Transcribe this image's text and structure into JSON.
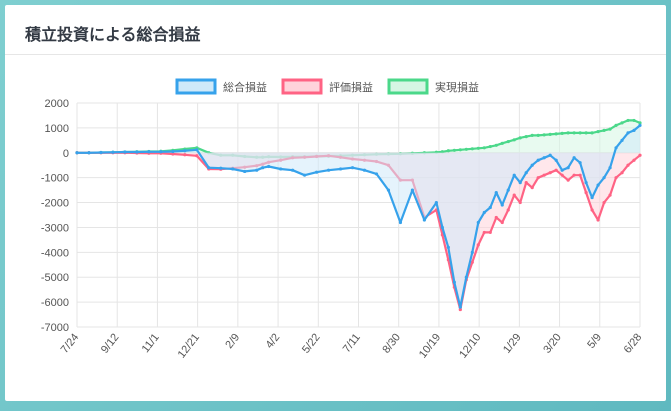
{
  "card": {
    "title": "積立投資による総合損益"
  },
  "colors": {
    "total_line": "#36a2eb",
    "total_fill": "#cfe9f9",
    "eval_line": "#ff6384",
    "eval_fill": "#ffd3db",
    "realized_line": "#4bd88a",
    "realized_fill": "#d6f6e4",
    "grid": "#e5e5e5",
    "axis_text": "#555555"
  },
  "chart_data": {
    "type": "area",
    "title": "",
    "xlabel": "",
    "ylabel": "",
    "ylim": [
      -7000,
      2000
    ],
    "yticks": [
      2000,
      1000,
      0,
      -1000,
      -2000,
      -3000,
      -4000,
      -5000,
      -6000,
      -7000
    ],
    "x_tick_labels": [
      "7/24",
      "9/12",
      "11/1",
      "12/21",
      "2/9",
      "4/2",
      "5/22",
      "7/11",
      "8/30",
      "10/19",
      "12/10",
      "1/29",
      "3/20",
      "5/9",
      "6/28"
    ],
    "grid": true,
    "legend_position": "top",
    "x": [
      0,
      2,
      4,
      6,
      8,
      10,
      12,
      14,
      16,
      18,
      20,
      22,
      24,
      26,
      28,
      30,
      31,
      32,
      34,
      36,
      38,
      40,
      42,
      44,
      46,
      48,
      50,
      52,
      54,
      56,
      58,
      60,
      61,
      62,
      63,
      64,
      65,
      66,
      67,
      68,
      69,
      70,
      71,
      72,
      73,
      74,
      75,
      76,
      77,
      78,
      79,
      80,
      81,
      82,
      83,
      84,
      85,
      86,
      87,
      88,
      89,
      90,
      91,
      92,
      93,
      94
    ],
    "series": [
      {
        "name": "総合損益",
        "values": [
          0,
          0,
          10,
          20,
          30,
          30,
          40,
          40,
          50,
          80,
          120,
          -600,
          -620,
          -650,
          -750,
          -700,
          -600,
          -550,
          -650,
          -700,
          -900,
          -780,
          -700,
          -650,
          -600,
          -700,
          -850,
          -1500,
          -2800,
          -1500,
          -2700,
          -2000,
          -3000,
          -3800,
          -5200,
          -6200,
          -5000,
          -4000,
          -2800,
          -2400,
          -2200,
          -1600,
          -2100,
          -1500,
          -900,
          -1200,
          -800,
          -500,
          -300,
          -200,
          -100,
          -300,
          -700,
          -600,
          -200,
          -400,
          -1200,
          -1800,
          -1300,
          -1000,
          -600,
          200,
          500,
          800,
          900,
          1100
        ]
      },
      {
        "name": "評価損益",
        "values": [
          0,
          0,
          0,
          0,
          0,
          -10,
          -20,
          -20,
          -50,
          -80,
          -120,
          -650,
          -660,
          -620,
          -580,
          -520,
          -460,
          -380,
          -300,
          -200,
          -180,
          -150,
          -120,
          -180,
          -250,
          -300,
          -350,
          -500,
          -1100,
          -1100,
          -2600,
          -2300,
          -3300,
          -4300,
          -5400,
          -6300,
          -5100,
          -4400,
          -3700,
          -3200,
          -3200,
          -2600,
          -2800,
          -2300,
          -1700,
          -2000,
          -1200,
          -1400,
          -1000,
          -900,
          -800,
          -700,
          -900,
          -1100,
          -900,
          -900,
          -1600,
          -2300,
          -2700,
          -2000,
          -1700,
          -1000,
          -800,
          -500,
          -300,
          -100
        ]
      },
      {
        "name": "実現損益",
        "values": [
          0,
          0,
          10,
          20,
          30,
          40,
          50,
          60,
          100,
          150,
          200,
          0,
          -100,
          -100,
          -150,
          -180,
          -180,
          -160,
          -170,
          -160,
          -160,
          -140,
          -130,
          -120,
          -100,
          -80,
          -60,
          -50,
          -40,
          -20,
          0,
          20,
          40,
          80,
          100,
          120,
          140,
          160,
          180,
          200,
          250,
          300,
          380,
          450,
          520,
          600,
          650,
          700,
          700,
          720,
          740,
          760,
          780,
          800,
          800,
          800,
          800,
          800,
          850,
          900,
          950,
          1100,
          1200,
          1300,
          1300,
          1200
        ]
      }
    ]
  }
}
